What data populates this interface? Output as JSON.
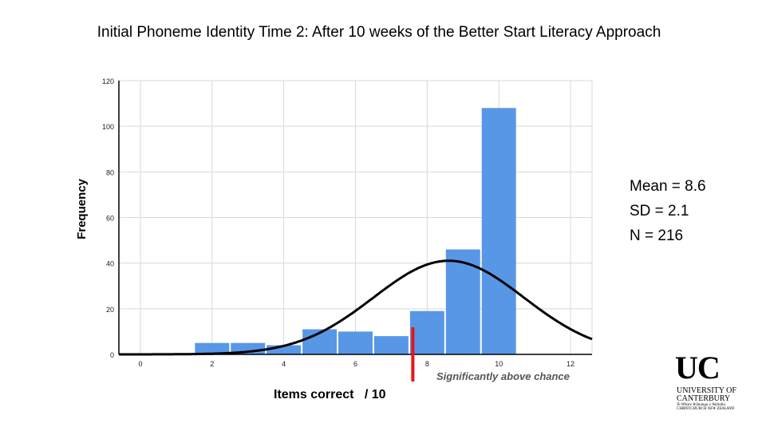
{
  "slide": {
    "title": "Initial Phoneme Identity Time 2: After 10 weeks of the Better Start Literacy Approach"
  },
  "stats": {
    "mean": "Mean = 8.6",
    "sd": "SD = 2.1",
    "n": "N = 216"
  },
  "annotation": {
    "marker_label": "Significantly above chance",
    "marker_x": 7.6,
    "marker_color": "#e8141b"
  },
  "logo": {
    "line1": "UC",
    "line2": "UNIVERSITY OF",
    "line3": "CANTERBURY",
    "line4": "Te Whare Wānanga o Waitaha",
    "line5": "CHRISTCHURCH NEW ZEALAND"
  },
  "chart_data": {
    "type": "bar",
    "title": "",
    "xlabel": "Items correct   / 10",
    "ylabel": "Frequency",
    "xlim": [
      -0.6,
      12.6
    ],
    "ylim": [
      0,
      120
    ],
    "x_ticks": [
      0,
      2,
      4,
      6,
      8,
      10,
      12
    ],
    "y_ticks": [
      0,
      20,
      40,
      60,
      80,
      100,
      120
    ],
    "grid": true,
    "bar_color": "#5897e6",
    "categories": [
      2,
      3,
      4,
      5,
      6,
      7,
      8,
      9,
      10
    ],
    "values": [
      5,
      5,
      4,
      11,
      10,
      8,
      19,
      46,
      108
    ],
    "normal_curve": {
      "mean": 8.6,
      "sd": 2.1,
      "n": 216,
      "bin_width": 1,
      "color": "#000000"
    }
  }
}
